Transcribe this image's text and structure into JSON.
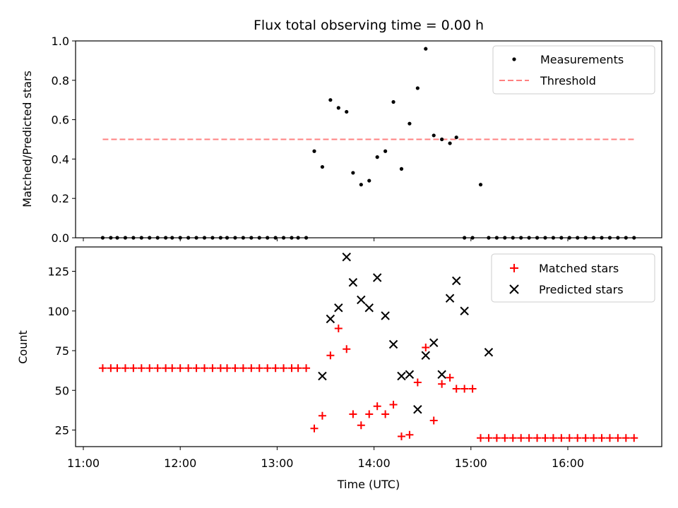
{
  "chart_data": [
    {
      "type": "scatter",
      "title": "Flux total observing time = 0.00 h",
      "xlabel": "",
      "ylabel": "Matched/Predicted stars",
      "xlim": [
        "11:00",
        "17:00"
      ],
      "ylim": [
        0,
        1.0
      ],
      "yticks": [
        0.0,
        0.2,
        0.4,
        0.6,
        0.8,
        1.0
      ],
      "ytick_labels": [
        "0.0",
        "0.2",
        "0.4",
        "0.6",
        "0.8",
        "1.0"
      ],
      "legend": {
        "placement": "upper right",
        "entries": [
          "Measurements",
          "Threshold"
        ]
      },
      "colors": {
        "measurements": "#000000",
        "threshold": "#ff8080"
      },
      "series": [
        {
          "name": "Measurements",
          "marker": "dot",
          "x": [
            "11:12",
            "11:17",
            "11:21",
            "11:26",
            "11:31",
            "11:36",
            "11:41",
            "11:46",
            "11:51",
            "11:55",
            "12:00",
            "12:05",
            "12:10",
            "12:15",
            "12:20",
            "12:25",
            "12:29",
            "12:34",
            "12:39",
            "12:44",
            "12:49",
            "12:54",
            "12:59",
            "13:04",
            "13:09",
            "13:13",
            "13:18",
            "13:23",
            "13:28",
            "13:33",
            "13:38",
            "13:43",
            "13:47",
            "13:52",
            "13:57",
            "14:02",
            "14:07",
            "14:12",
            "14:17",
            "14:22",
            "14:27",
            "14:32",
            "14:37",
            "14:42",
            "14:47",
            "14:51",
            "14:56",
            "15:01",
            "15:06",
            "15:11",
            "15:16",
            "15:21",
            "15:26",
            "15:31",
            "15:36",
            "15:41",
            "15:46",
            "15:51",
            "15:56",
            "16:01",
            "16:06",
            "16:11",
            "16:16",
            "16:21",
            "16:26",
            "16:31",
            "16:36",
            "16:41"
          ],
          "y": [
            0,
            0,
            0,
            0,
            0,
            0,
            0,
            0,
            0,
            0,
            0,
            0,
            0,
            0,
            0,
            0,
            0,
            0,
            0,
            0,
            0,
            0,
            0,
            0,
            0,
            0,
            0,
            0.44,
            0.36,
            0.7,
            0.66,
            0.64,
            0.33,
            0.27,
            0.29,
            0.41,
            0.44,
            0.69,
            0.35,
            0.58,
            0.76,
            0.96,
            0.52,
            0.5,
            0.48,
            0.51,
            0,
            0,
            0.27,
            0,
            0,
            0,
            0,
            0,
            0,
            0,
            0,
            0,
            0,
            0,
            0,
            0,
            0,
            0,
            0,
            0,
            0,
            0
          ]
        },
        {
          "name": "Threshold",
          "style": "dashed",
          "x": [
            "11:12",
            "16:41"
          ],
          "y": [
            0.5,
            0.5
          ]
        }
      ]
    },
    {
      "type": "scatter",
      "title": "",
      "xlabel": "Time (UTC)",
      "ylabel": "Count",
      "xlim": [
        "11:00",
        "17:00"
      ],
      "ylim": [
        14,
        140
      ],
      "xticks": [
        "11:00",
        "12:00",
        "13:00",
        "14:00",
        "15:00",
        "16:00"
      ],
      "yticks": [
        25,
        50,
        75,
        100,
        125
      ],
      "legend": {
        "placement": "upper right",
        "entries": [
          "Matched stars",
          "Predicted stars"
        ]
      },
      "colors": {
        "matched": "#ff0000",
        "predicted": "#000000"
      },
      "series": [
        {
          "name": "Matched stars",
          "marker": "plus",
          "x": [
            "11:12",
            "11:17",
            "11:21",
            "11:26",
            "11:31",
            "11:36",
            "11:41",
            "11:46",
            "11:51",
            "11:55",
            "12:00",
            "12:05",
            "12:10",
            "12:15",
            "12:20",
            "12:25",
            "12:29",
            "12:34",
            "12:39",
            "12:44",
            "12:49",
            "12:54",
            "12:59",
            "13:04",
            "13:09",
            "13:13",
            "13:18",
            "13:23",
            "13:28",
            "13:33",
            "13:38",
            "13:43",
            "13:47",
            "13:52",
            "13:57",
            "14:02",
            "14:07",
            "14:12",
            "14:17",
            "14:22",
            "14:27",
            "14:32",
            "14:37",
            "14:42",
            "14:47",
            "14:51",
            "14:56",
            "15:01",
            "15:06",
            "15:11",
            "15:16",
            "15:21",
            "15:26",
            "15:31",
            "15:36",
            "15:41",
            "15:46",
            "15:51",
            "15:56",
            "16:01",
            "16:06",
            "16:11",
            "16:16",
            "16:21",
            "16:26",
            "16:31",
            "16:36",
            "16:41"
          ],
          "y": [
            64,
            64,
            64,
            64,
            64,
            64,
            64,
            64,
            64,
            64,
            64,
            64,
            64,
            64,
            64,
            64,
            64,
            64,
            64,
            64,
            64,
            64,
            64,
            64,
            64,
            64,
            64,
            26,
            34,
            72,
            89,
            76,
            35,
            28,
            35,
            40,
            35,
            41,
            21,
            22,
            55,
            77,
            31,
            54,
            58,
            51,
            51,
            51,
            20,
            20,
            20,
            20,
            20,
            20,
            20,
            20,
            20,
            20,
            20,
            20,
            20,
            20,
            20,
            20,
            20,
            20,
            20,
            20
          ]
        },
        {
          "name": "Predicted stars",
          "marker": "x",
          "x": [
            "13:28",
            "13:33",
            "13:38",
            "13:43",
            "13:47",
            "13:52",
            "13:57",
            "14:02",
            "14:07",
            "14:12",
            "14:17",
            "14:22",
            "14:27",
            "14:32",
            "14:37",
            "14:42",
            "14:47",
            "14:51",
            "14:56",
            "15:11"
          ],
          "y": [
            59,
            95,
            102,
            134,
            118,
            107,
            102,
            121,
            97,
            79,
            59,
            60,
            38,
            72,
            80,
            60,
            108,
            119,
            100,
            74
          ]
        }
      ]
    }
  ]
}
